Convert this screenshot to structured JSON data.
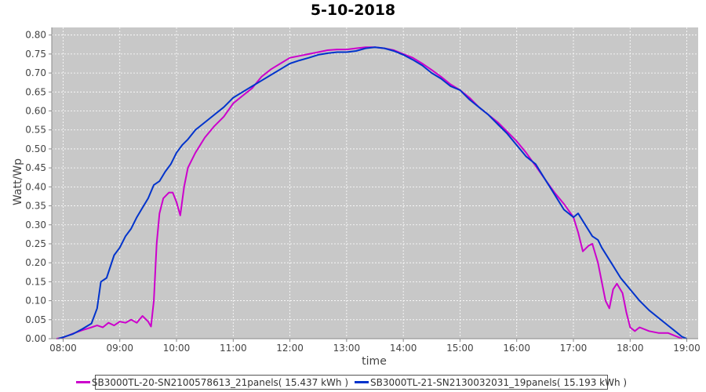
{
  "chart_data": {
    "type": "line",
    "title": "5-10-2018",
    "xlabel": "time",
    "ylabel": "Watt/Wp",
    "xlim": [
      "07:48",
      "19:12"
    ],
    "ylim": [
      0,
      0.82
    ],
    "x_ticks": [
      "08:00",
      "09:00",
      "10:00",
      "11:00",
      "12:00",
      "13:00",
      "14:00",
      "15:00",
      "16:00",
      "17:00",
      "18:00",
      "19:00"
    ],
    "y_ticks": [
      "0.00",
      "0.05",
      "0.10",
      "0.15",
      "0.20",
      "0.25",
      "0.30",
      "0.35",
      "0.40",
      "0.45",
      "0.50",
      "0.55",
      "0.60",
      "0.65",
      "0.70",
      "0.75",
      "0.80"
    ],
    "grid": true,
    "legend_position": "bottom",
    "plot_background": "#c8c8c8",
    "series": [
      {
        "name": "SB3000TL-20-SN2100578613_21panels( 15.437 kWh )",
        "color": "#cc00cc",
        "points": [
          [
            "07:53",
            0.0
          ],
          [
            "08:00",
            0.003
          ],
          [
            "08:10",
            0.013
          ],
          [
            "08:20",
            0.022
          ],
          [
            "08:30",
            0.03
          ],
          [
            "08:36",
            0.035
          ],
          [
            "08:42",
            0.03
          ],
          [
            "08:48",
            0.042
          ],
          [
            "08:54",
            0.035
          ],
          [
            "09:00",
            0.045
          ],
          [
            "09:06",
            0.042
          ],
          [
            "09:12",
            0.05
          ],
          [
            "09:18",
            0.042
          ],
          [
            "09:24",
            0.06
          ],
          [
            "09:30",
            0.045
          ],
          [
            "09:33",
            0.032
          ],
          [
            "09:36",
            0.1
          ],
          [
            "09:39",
            0.25
          ],
          [
            "09:42",
            0.33
          ],
          [
            "09:46",
            0.37
          ],
          [
            "09:52",
            0.385
          ],
          [
            "09:56",
            0.385
          ],
          [
            "10:00",
            0.36
          ],
          [
            "10:04",
            0.325
          ],
          [
            "10:08",
            0.4
          ],
          [
            "10:12",
            0.45
          ],
          [
            "10:20",
            0.49
          ],
          [
            "10:30",
            0.53
          ],
          [
            "10:40",
            0.56
          ],
          [
            "10:50",
            0.585
          ],
          [
            "11:00",
            0.62
          ],
          [
            "11:10",
            0.64
          ],
          [
            "11:20",
            0.66
          ],
          [
            "11:30",
            0.69
          ],
          [
            "11:40",
            0.71
          ],
          [
            "11:50",
            0.725
          ],
          [
            "12:00",
            0.74
          ],
          [
            "12:10",
            0.745
          ],
          [
            "12:20",
            0.75
          ],
          [
            "12:30",
            0.755
          ],
          [
            "12:40",
            0.76
          ],
          [
            "12:50",
            0.762
          ],
          [
            "13:00",
            0.762
          ],
          [
            "13:10",
            0.765
          ],
          [
            "13:20",
            0.768
          ],
          [
            "13:30",
            0.768
          ],
          [
            "13:40",
            0.765
          ],
          [
            "13:50",
            0.76
          ],
          [
            "14:00",
            0.75
          ],
          [
            "14:10",
            0.74
          ],
          [
            "14:20",
            0.725
          ],
          [
            "14:30",
            0.708
          ],
          [
            "14:40",
            0.69
          ],
          [
            "14:50",
            0.67
          ],
          [
            "15:00",
            0.655
          ],
          [
            "15:10",
            0.635
          ],
          [
            "15:20",
            0.61
          ],
          [
            "15:30",
            0.59
          ],
          [
            "15:40",
            0.57
          ],
          [
            "15:50",
            0.545
          ],
          [
            "16:00",
            0.52
          ],
          [
            "16:10",
            0.49
          ],
          [
            "16:20",
            0.455
          ],
          [
            "16:30",
            0.42
          ],
          [
            "16:40",
            0.385
          ],
          [
            "16:50",
            0.355
          ],
          [
            "17:00",
            0.32
          ],
          [
            "17:05",
            0.28
          ],
          [
            "17:10",
            0.23
          ],
          [
            "17:16",
            0.245
          ],
          [
            "17:20",
            0.25
          ],
          [
            "17:26",
            0.2
          ],
          [
            "17:30",
            0.15
          ],
          [
            "17:34",
            0.1
          ],
          [
            "17:38",
            0.08
          ],
          [
            "17:42",
            0.13
          ],
          [
            "17:46",
            0.145
          ],
          [
            "17:52",
            0.12
          ],
          [
            "17:56",
            0.07
          ],
          [
            "18:00",
            0.03
          ],
          [
            "18:05",
            0.02
          ],
          [
            "18:10",
            0.03
          ],
          [
            "18:20",
            0.02
          ],
          [
            "18:30",
            0.015
          ],
          [
            "18:40",
            0.015
          ],
          [
            "18:50",
            0.005
          ],
          [
            "18:55",
            0.0
          ]
        ]
      },
      {
        "name": "SB3000TL-21-SN2130032031_19panels( 15.193 kWh )",
        "color": "#0033cc",
        "points": [
          [
            "07:55",
            0.0
          ],
          [
            "08:00",
            0.004
          ],
          [
            "08:10",
            0.012
          ],
          [
            "08:20",
            0.025
          ],
          [
            "08:30",
            0.04
          ],
          [
            "08:36",
            0.08
          ],
          [
            "08:40",
            0.15
          ],
          [
            "08:46",
            0.16
          ],
          [
            "08:50",
            0.19
          ],
          [
            "08:54",
            0.22
          ],
          [
            "09:00",
            0.24
          ],
          [
            "09:06",
            0.27
          ],
          [
            "09:12",
            0.29
          ],
          [
            "09:18",
            0.32
          ],
          [
            "09:24",
            0.345
          ],
          [
            "09:30",
            0.37
          ],
          [
            "09:36",
            0.405
          ],
          [
            "09:42",
            0.415
          ],
          [
            "09:48",
            0.44
          ],
          [
            "09:54",
            0.46
          ],
          [
            "10:00",
            0.49
          ],
          [
            "10:06",
            0.51
          ],
          [
            "10:12",
            0.525
          ],
          [
            "10:20",
            0.55
          ],
          [
            "10:30",
            0.57
          ],
          [
            "10:40",
            0.59
          ],
          [
            "10:50",
            0.61
          ],
          [
            "11:00",
            0.635
          ],
          [
            "11:10",
            0.65
          ],
          [
            "11:20",
            0.665
          ],
          [
            "11:30",
            0.68
          ],
          [
            "11:40",
            0.695
          ],
          [
            "11:50",
            0.71
          ],
          [
            "12:00",
            0.725
          ],
          [
            "12:10",
            0.733
          ],
          [
            "12:20",
            0.74
          ],
          [
            "12:30",
            0.748
          ],
          [
            "12:40",
            0.752
          ],
          [
            "12:50",
            0.755
          ],
          [
            "13:00",
            0.755
          ],
          [
            "13:10",
            0.758
          ],
          [
            "13:20",
            0.765
          ],
          [
            "13:30",
            0.768
          ],
          [
            "13:40",
            0.765
          ],
          [
            "13:50",
            0.758
          ],
          [
            "14:00",
            0.748
          ],
          [
            "14:10",
            0.735
          ],
          [
            "14:20",
            0.72
          ],
          [
            "14:30",
            0.7
          ],
          [
            "14:40",
            0.685
          ],
          [
            "14:50",
            0.665
          ],
          [
            "15:00",
            0.655
          ],
          [
            "15:10",
            0.63
          ],
          [
            "15:20",
            0.61
          ],
          [
            "15:30",
            0.59
          ],
          [
            "15:40",
            0.565
          ],
          [
            "15:50",
            0.54
          ],
          [
            "16:00",
            0.51
          ],
          [
            "16:10",
            0.48
          ],
          [
            "16:20",
            0.46
          ],
          [
            "16:30",
            0.42
          ],
          [
            "16:40",
            0.38
          ],
          [
            "16:50",
            0.34
          ],
          [
            "17:00",
            0.32
          ],
          [
            "17:05",
            0.33
          ],
          [
            "17:10",
            0.31
          ],
          [
            "17:20",
            0.27
          ],
          [
            "17:26",
            0.26
          ],
          [
            "17:30",
            0.24
          ],
          [
            "17:40",
            0.2
          ],
          [
            "17:50",
            0.16
          ],
          [
            "18:00",
            0.13
          ],
          [
            "18:10",
            0.1
          ],
          [
            "18:20",
            0.075
          ],
          [
            "18:30",
            0.055
          ],
          [
            "18:40",
            0.035
          ],
          [
            "18:50",
            0.015
          ],
          [
            "18:55",
            0.005
          ],
          [
            "19:00",
            0.0
          ]
        ]
      }
    ]
  }
}
